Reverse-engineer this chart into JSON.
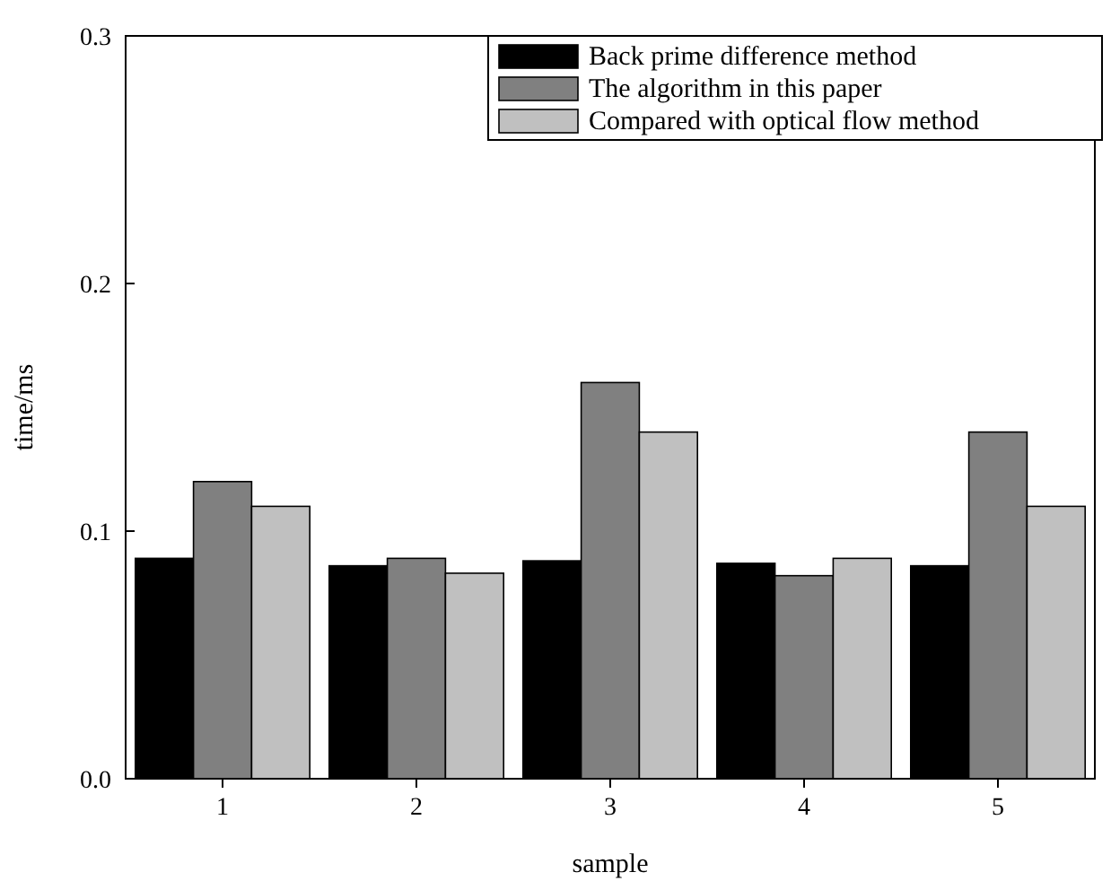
{
  "chart_data": {
    "type": "bar",
    "xlabel": "sample",
    "ylabel": "time/ms",
    "categories": [
      "1",
      "2",
      "3",
      "4",
      "5"
    ],
    "series": [
      {
        "name": "Back prime difference method",
        "color": "#000000",
        "values": [
          0.089,
          0.086,
          0.088,
          0.087,
          0.086
        ]
      },
      {
        "name": "The algorithm in this paper",
        "color": "#808080",
        "values": [
          0.12,
          0.089,
          0.16,
          0.082,
          0.14
        ]
      },
      {
        "name": "Compared with optical flow method",
        "color": "#c0c0c0",
        "values": [
          0.11,
          0.083,
          0.14,
          0.089,
          0.11
        ]
      }
    ],
    "ylim": [
      0,
      0.3
    ],
    "yticks": [
      {
        "value": 0,
        "label": "0.0"
      },
      {
        "value": 0.1,
        "label": "0.1"
      },
      {
        "value": 0.2,
        "label": "0.2"
      },
      {
        "value": 0.3,
        "label": "0.3"
      }
    ],
    "grid": false,
    "legend": "top right"
  }
}
